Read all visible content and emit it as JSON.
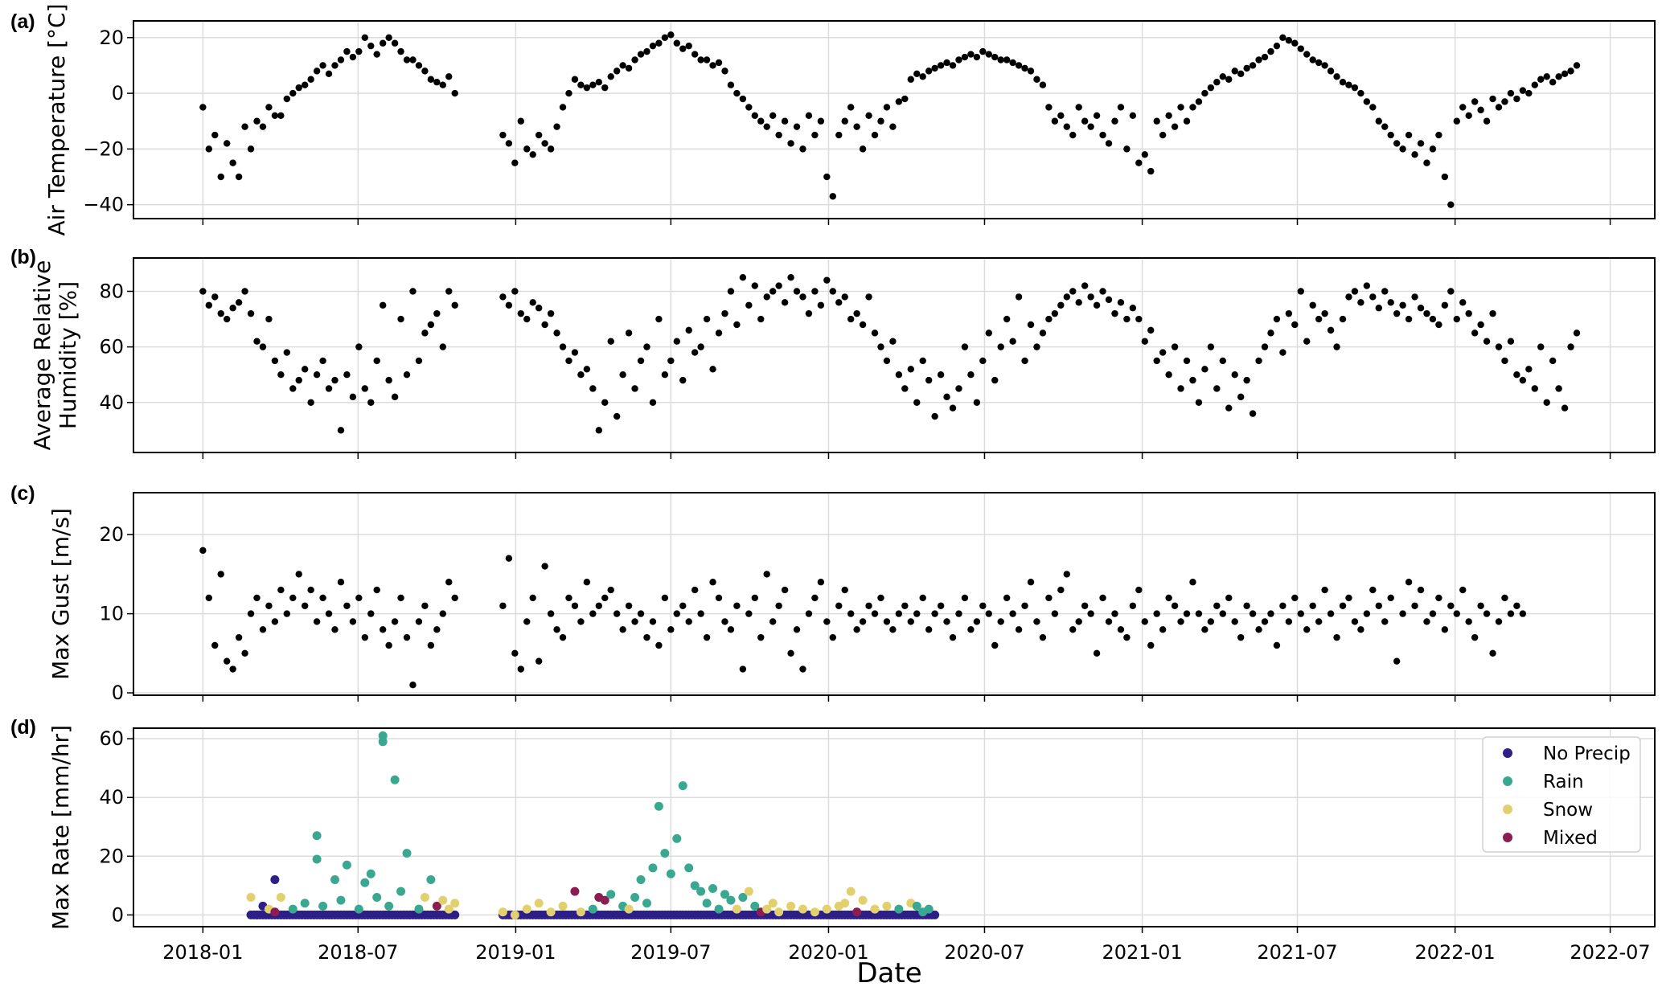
{
  "chart_data": [
    {
      "type": "scatter",
      "panel_label": "(a)",
      "ylabel": "Air Temperature [°C]",
      "ylim": [
        -45,
        26
      ],
      "yticks": [
        20,
        0,
        -20,
        -40
      ],
      "yticklabels": [
        "20",
        "0",
        "−20",
        "−40"
      ],
      "x_start": "2018-01-01",
      "x_step_days": 7,
      "values": [
        -5,
        -20,
        -15,
        -30,
        -18,
        -25,
        -30,
        -12,
        -20,
        -10,
        -12,
        -5,
        -8,
        -8,
        -2,
        0,
        2,
        3,
        5,
        8,
        10,
        7,
        10,
        12,
        15,
        13,
        15,
        20,
        17,
        14,
        18,
        20,
        18,
        15,
        12,
        12,
        10,
        8,
        5,
        4,
        3,
        6,
        0,
        null,
        null,
        null,
        null,
        null,
        null,
        null,
        -15,
        -18,
        -25,
        -10,
        -20,
        -22,
        -15,
        -18,
        -20,
        -12,
        -5,
        0,
        5,
        3,
        2,
        3,
        4,
        2,
        6,
        8,
        10,
        9,
        12,
        14,
        15,
        17,
        18,
        20,
        21,
        18,
        16,
        17,
        14,
        12,
        12,
        10,
        11,
        8,
        3,
        0,
        -2,
        -5,
        -8,
        -10,
        -12,
        -8,
        -15,
        -10,
        -18,
        -12,
        -20,
        -8,
        -15,
        -10,
        -30,
        -37,
        -15,
        -10,
        -5,
        -12,
        -20,
        -8,
        -15,
        -10,
        -5,
        -12,
        -3,
        -2,
        5,
        7,
        6,
        8,
        9,
        10,
        11,
        10,
        12,
        13,
        14,
        13,
        15,
        14,
        13,
        12,
        12,
        11,
        10,
        9,
        8,
        5,
        3,
        -5,
        -10,
        -8,
        -12,
        -15,
        -5,
        -10,
        -12,
        -8,
        -15,
        -18,
        -10,
        -5,
        -20,
        -8,
        -25,
        -22,
        -28,
        -10,
        -15,
        -8,
        -12,
        -5,
        -10,
        -5,
        -3,
        0,
        2,
        4,
        6,
        5,
        8,
        7,
        9,
        10,
        12,
        13,
        15,
        17,
        20,
        19,
        18,
        16,
        14,
        12,
        11,
        10,
        8,
        6,
        4,
        3,
        2,
        0,
        -3,
        -5,
        -10,
        -12,
        -15,
        -18,
        -20,
        -15,
        -22,
        -18,
        -25,
        -20,
        -15,
        -30,
        -40,
        -10,
        -5,
        -8,
        -3,
        -6,
        -10,
        -2,
        -5,
        -3,
        0,
        -2,
        1,
        0,
        3,
        5,
        6,
        4,
        6,
        7,
        8,
        10
      ]
    },
    {
      "type": "scatter",
      "panel_label": "(b)",
      "ylabel_lines": [
        "Average Relative",
        "Humidity [%]"
      ],
      "ylim": [
        22,
        92
      ],
      "yticks": [
        80,
        60,
        40
      ],
      "yticklabels": [
        "80",
        "60",
        "40"
      ],
      "x_start": "2018-01-01",
      "x_step_days": 7,
      "values": [
        80,
        75,
        78,
        72,
        70,
        74,
        76,
        80,
        72,
        62,
        60,
        70,
        55,
        50,
        58,
        45,
        48,
        52,
        40,
        50,
        55,
        45,
        48,
        30,
        50,
        42,
        60,
        45,
        40,
        55,
        75,
        48,
        42,
        70,
        50,
        80,
        55,
        65,
        68,
        72,
        60,
        80,
        75,
        null,
        null,
        null,
        null,
        null,
        null,
        null,
        78,
        75,
        80,
        72,
        70,
        76,
        74,
        68,
        72,
        65,
        60,
        55,
        58,
        50,
        52,
        45,
        30,
        40,
        62,
        35,
        50,
        65,
        45,
        55,
        60,
        40,
        70,
        50,
        55,
        62,
        48,
        66,
        58,
        60,
        70,
        52,
        65,
        72,
        80,
        68,
        85,
        75,
        82,
        70,
        78,
        80,
        82,
        76,
        85,
        80,
        78,
        72,
        80,
        75,
        84,
        80,
        76,
        78,
        70,
        72,
        68,
        78,
        65,
        60,
        55,
        62,
        50,
        45,
        52,
        40,
        55,
        48,
        35,
        50,
        42,
        38,
        45,
        60,
        50,
        40,
        55,
        65,
        48,
        60,
        70,
        62,
        78,
        55,
        68,
        60,
        65,
        70,
        72,
        75,
        78,
        80,
        76,
        82,
        78,
        75,
        80,
        77,
        72,
        76,
        70,
        74,
        70,
        62,
        66,
        55,
        58,
        50,
        60,
        45,
        55,
        48,
        40,
        52,
        60,
        45,
        55,
        38,
        50,
        42,
        48,
        36,
        55,
        60,
        65,
        70,
        58,
        72,
        68,
        80,
        62,
        75,
        70,
        72,
        66,
        60,
        70,
        78,
        80,
        76,
        82,
        78,
        74,
        80,
        76,
        72,
        75,
        70,
        78,
        74,
        72,
        70,
        68,
        75,
        80,
        70,
        76,
        72,
        65,
        68,
        62,
        72,
        60,
        55,
        62,
        50,
        48,
        52,
        45,
        60,
        40,
        55,
        45,
        38,
        60,
        65
      ]
    },
    {
      "type": "scatter",
      "panel_label": "(c)",
      "ylabel": "Max Gust [m/s]",
      "ylim": [
        -0.3,
        25.3
      ],
      "yticks": [
        20,
        10,
        0
      ],
      "yticklabels": [
        "20",
        "10",
        "0"
      ],
      "x_start": "2018-01-01",
      "x_step_days": 7,
      "values": [
        18,
        12,
        6,
        15,
        4,
        3,
        7,
        5,
        10,
        12,
        8,
        11,
        9,
        13,
        10,
        12,
        15,
        11,
        13,
        9,
        12,
        10,
        8,
        14,
        11,
        9,
        12,
        7,
        10,
        13,
        8,
        6,
        9,
        12,
        7,
        1,
        9,
        11,
        6,
        8,
        10,
        14,
        12,
        null,
        null,
        null,
        null,
        null,
        null,
        null,
        11,
        17,
        5,
        3,
        9,
        12,
        4,
        16,
        10,
        8,
        7,
        12,
        11,
        9,
        14,
        10,
        11,
        12,
        13,
        10,
        8,
        11,
        9,
        10,
        7,
        9,
        6,
        12,
        8,
        10,
        11,
        9,
        13,
        10,
        7,
        14,
        12,
        9,
        8,
        11,
        3,
        10,
        12,
        7,
        15,
        9,
        11,
        13,
        5,
        8,
        3,
        10,
        12,
        14,
        9,
        7,
        11,
        13,
        10,
        8,
        9,
        11,
        10,
        12,
        9,
        8,
        10,
        11,
        9,
        10,
        12,
        8,
        10,
        11,
        9,
        7,
        10,
        12,
        8,
        9,
        11,
        10,
        6,
        9,
        12,
        10,
        8,
        11,
        14,
        9,
        7,
        12,
        10,
        13,
        15,
        8,
        9,
        11,
        10,
        5,
        12,
        9,
        10,
        8,
        7,
        11,
        13,
        9,
        6,
        10,
        8,
        12,
        11,
        9,
        10,
        14,
        10,
        8,
        9,
        11,
        10,
        12,
        9,
        7,
        11,
        10,
        8,
        9,
        10,
        6,
        11,
        9,
        12,
        10,
        8,
        11,
        9,
        13,
        10,
        7,
        11,
        12,
        9,
        8,
        10,
        13,
        11,
        9,
        12,
        4,
        10,
        14,
        11,
        13,
        9,
        10,
        12,
        8,
        11,
        10,
        13,
        9,
        7,
        11,
        10,
        5,
        9,
        12,
        10,
        11,
        10
      ]
    },
    {
      "type": "scatter",
      "panel_label": "(d)",
      "ylabel": "Max Rate [mm/hr]",
      "xlabel": "Date",
      "ylim": [
        -4,
        63.6
      ],
      "yticks": [
        60,
        40,
        20,
        0
      ],
      "yticklabels": [
        "60",
        "40",
        "20",
        "0"
      ],
      "x_start": "2018-01-01",
      "x_step_days": 7,
      "categories": [
        "No Precip",
        "Rain",
        "Snow",
        "Mixed"
      ],
      "no_precip_zero_week_ranges": [
        [
          8,
          42
        ],
        [
          50,
          122
        ]
      ],
      "points_week_value_category": [
        [
          8,
          6,
          2
        ],
        [
          9,
          0,
          0
        ],
        [
          10,
          3,
          0
        ],
        [
          11,
          2,
          2
        ],
        [
          12,
          12,
          0
        ],
        [
          12,
          1,
          3
        ],
        [
          13,
          6,
          2
        ],
        [
          15,
          2,
          1
        ],
        [
          17,
          4,
          1
        ],
        [
          19,
          27,
          1
        ],
        [
          19,
          19,
          1
        ],
        [
          20,
          3,
          1
        ],
        [
          22,
          12,
          1
        ],
        [
          23,
          5,
          1
        ],
        [
          24,
          17,
          1
        ],
        [
          26,
          2,
          1
        ],
        [
          27,
          11,
          1
        ],
        [
          28,
          14,
          1
        ],
        [
          29,
          6,
          1
        ],
        [
          30,
          61,
          1
        ],
        [
          30,
          59,
          1
        ],
        [
          31,
          3,
          1
        ],
        [
          32,
          46,
          1
        ],
        [
          33,
          8,
          1
        ],
        [
          34,
          21,
          1
        ],
        [
          36,
          2,
          1
        ],
        [
          37,
          6,
          2
        ],
        [
          38,
          12,
          1
        ],
        [
          39,
          3,
          3
        ],
        [
          40,
          5,
          2
        ],
        [
          41,
          2,
          2
        ],
        [
          42,
          4,
          2
        ],
        [
          50,
          1,
          2
        ],
        [
          52,
          0,
          2
        ],
        [
          54,
          2,
          2
        ],
        [
          56,
          4,
          2
        ],
        [
          58,
          1,
          2
        ],
        [
          60,
          3,
          2
        ],
        [
          62,
          8,
          3
        ],
        [
          63,
          1,
          2
        ],
        [
          65,
          2,
          1
        ],
        [
          66,
          6,
          3
        ],
        [
          67,
          5,
          3
        ],
        [
          68,
          7,
          1
        ],
        [
          70,
          3,
          1
        ],
        [
          71,
          2,
          2
        ],
        [
          72,
          6,
          1
        ],
        [
          73,
          12,
          1
        ],
        [
          74,
          4,
          1
        ],
        [
          75,
          16,
          1
        ],
        [
          76,
          37,
          1
        ],
        [
          77,
          21,
          1
        ],
        [
          78,
          14,
          1
        ],
        [
          79,
          26,
          1
        ],
        [
          80,
          44,
          1
        ],
        [
          81,
          16,
          1
        ],
        [
          82,
          10,
          1
        ],
        [
          83,
          8,
          1
        ],
        [
          84,
          4,
          1
        ],
        [
          85,
          9,
          1
        ],
        [
          86,
          2,
          1
        ],
        [
          87,
          7,
          1
        ],
        [
          88,
          5,
          1
        ],
        [
          89,
          2,
          2
        ],
        [
          90,
          6,
          1
        ],
        [
          91,
          8,
          2
        ],
        [
          92,
          3,
          1
        ],
        [
          93,
          1,
          3
        ],
        [
          94,
          2,
          2
        ],
        [
          95,
          4,
          2
        ],
        [
          96,
          1,
          2
        ],
        [
          98,
          3,
          2
        ],
        [
          100,
          2,
          2
        ],
        [
          102,
          1,
          2
        ],
        [
          104,
          2,
          2
        ],
        [
          106,
          3,
          2
        ],
        [
          107,
          4,
          2
        ],
        [
          108,
          8,
          2
        ],
        [
          109,
          1,
          3
        ],
        [
          110,
          5,
          2
        ],
        [
          112,
          2,
          2
        ],
        [
          114,
          3,
          2
        ],
        [
          116,
          2,
          1
        ],
        [
          118,
          4,
          2
        ],
        [
          119,
          3,
          1
        ],
        [
          120,
          1,
          1
        ],
        [
          121,
          2,
          1
        ]
      ],
      "legend": {
        "placement": "top-right",
        "entries": [
          "No Precip",
          "Rain",
          "Snow",
          "Mixed"
        ],
        "colors": [
          "#2d1f87",
          "#3aa891",
          "#e2cf6e",
          "#8c1d52"
        ]
      }
    }
  ],
  "shared_x": {
    "xlabel": "Date",
    "xlim": [
      "2017-10-12",
      "2022-08-22"
    ],
    "ticks": [
      "2018-01-01",
      "2018-07-01",
      "2019-01-01",
      "2019-07-01",
      "2020-01-01",
      "2020-07-01",
      "2021-01-01",
      "2021-07-01",
      "2022-01-01",
      "2022-07-01"
    ],
    "ticklabels": [
      "2018-01",
      "2018-07",
      "2019-01",
      "2019-07",
      "2020-01",
      "2020-07",
      "2021-01",
      "2021-07",
      "2022-01",
      "2022-07"
    ]
  }
}
